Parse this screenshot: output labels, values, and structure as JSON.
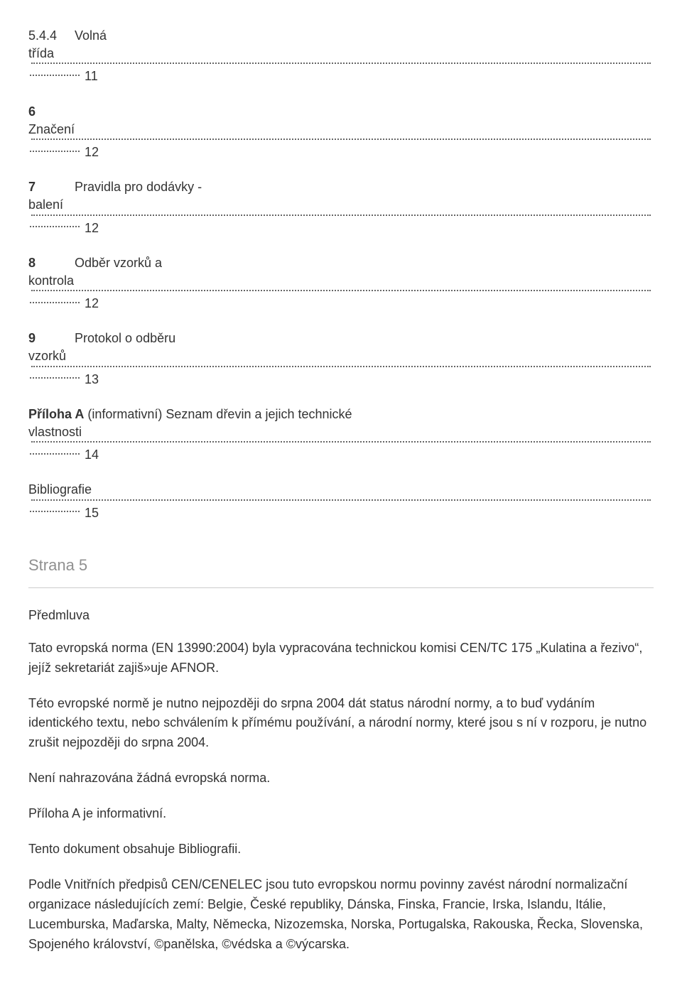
{
  "toc": {
    "e0": {
      "num": "5.4.4",
      "label": "Volná",
      "label2": "třída",
      "page_prefix": "............",
      "page": "11"
    },
    "e1": {
      "num": "6",
      "label": "Značení",
      "page_prefix": "............",
      "page": "12"
    },
    "e2": {
      "num": "7",
      "label": "Pravidla pro dodávky -",
      "label2": "balení",
      "page_prefix": "............",
      "page": "12"
    },
    "e3": {
      "num": "8",
      "label": "Odběr vzorků a",
      "label2": "kontrola",
      "page_prefix": "............",
      "page": "12"
    },
    "e4": {
      "num": "9",
      "label": "Protokol o odběru",
      "label2": "vzorků",
      "page_prefix": "............",
      "page": "13"
    },
    "annex": {
      "prefix": "Příloha A",
      "paren": "(informativní) Seznam dřevin a jejich technické",
      "label2": "vlastnosti",
      "page_prefix": "............",
      "page": "14"
    },
    "biblio": {
      "label": "Bibliografie",
      "page_prefix": "............",
      "page": "15"
    }
  },
  "strana": "Strana 5",
  "foreword": {
    "heading": "Předmluva",
    "p1": "Tato evropská norma (EN 13990:2004) byla vypracována technickou komisi CEN/TC 175 „Kulatina a řezivo“, jejíž sekretariát zajiš»uje AFNOR.",
    "p2": "Této evropské normě je nutno nejpozději do srpna 2004 dát status národní normy, a to buď vydáním identického textu, nebo schválením k přímému používání, a národní normy, které jsou s ní v rozporu, je nutno zrušit nejpozději do srpna 2004.",
    "p3": "Není nahrazována žádná evropská norma.",
    "p4": "Příloha A je informativní.",
    "p5": "Tento dokument obsahuje Bibliografii.",
    "p6": "Podle Vnitřních předpisů CEN/CENELEC jsou tuto evropskou normu povinny zavést národní normalizační organizace následujících zemí: Belgie, České republiky, Dánska, Finska, Francie, Irska, Islandu, Itálie, Lucemburska, Maďarska, Malty, Německa, Nizozemska, Norska, Portugalska, Rakouska, Řecka, Slovenska, Spojeného království, ©panělska, ©védska a ©výcarska."
  }
}
